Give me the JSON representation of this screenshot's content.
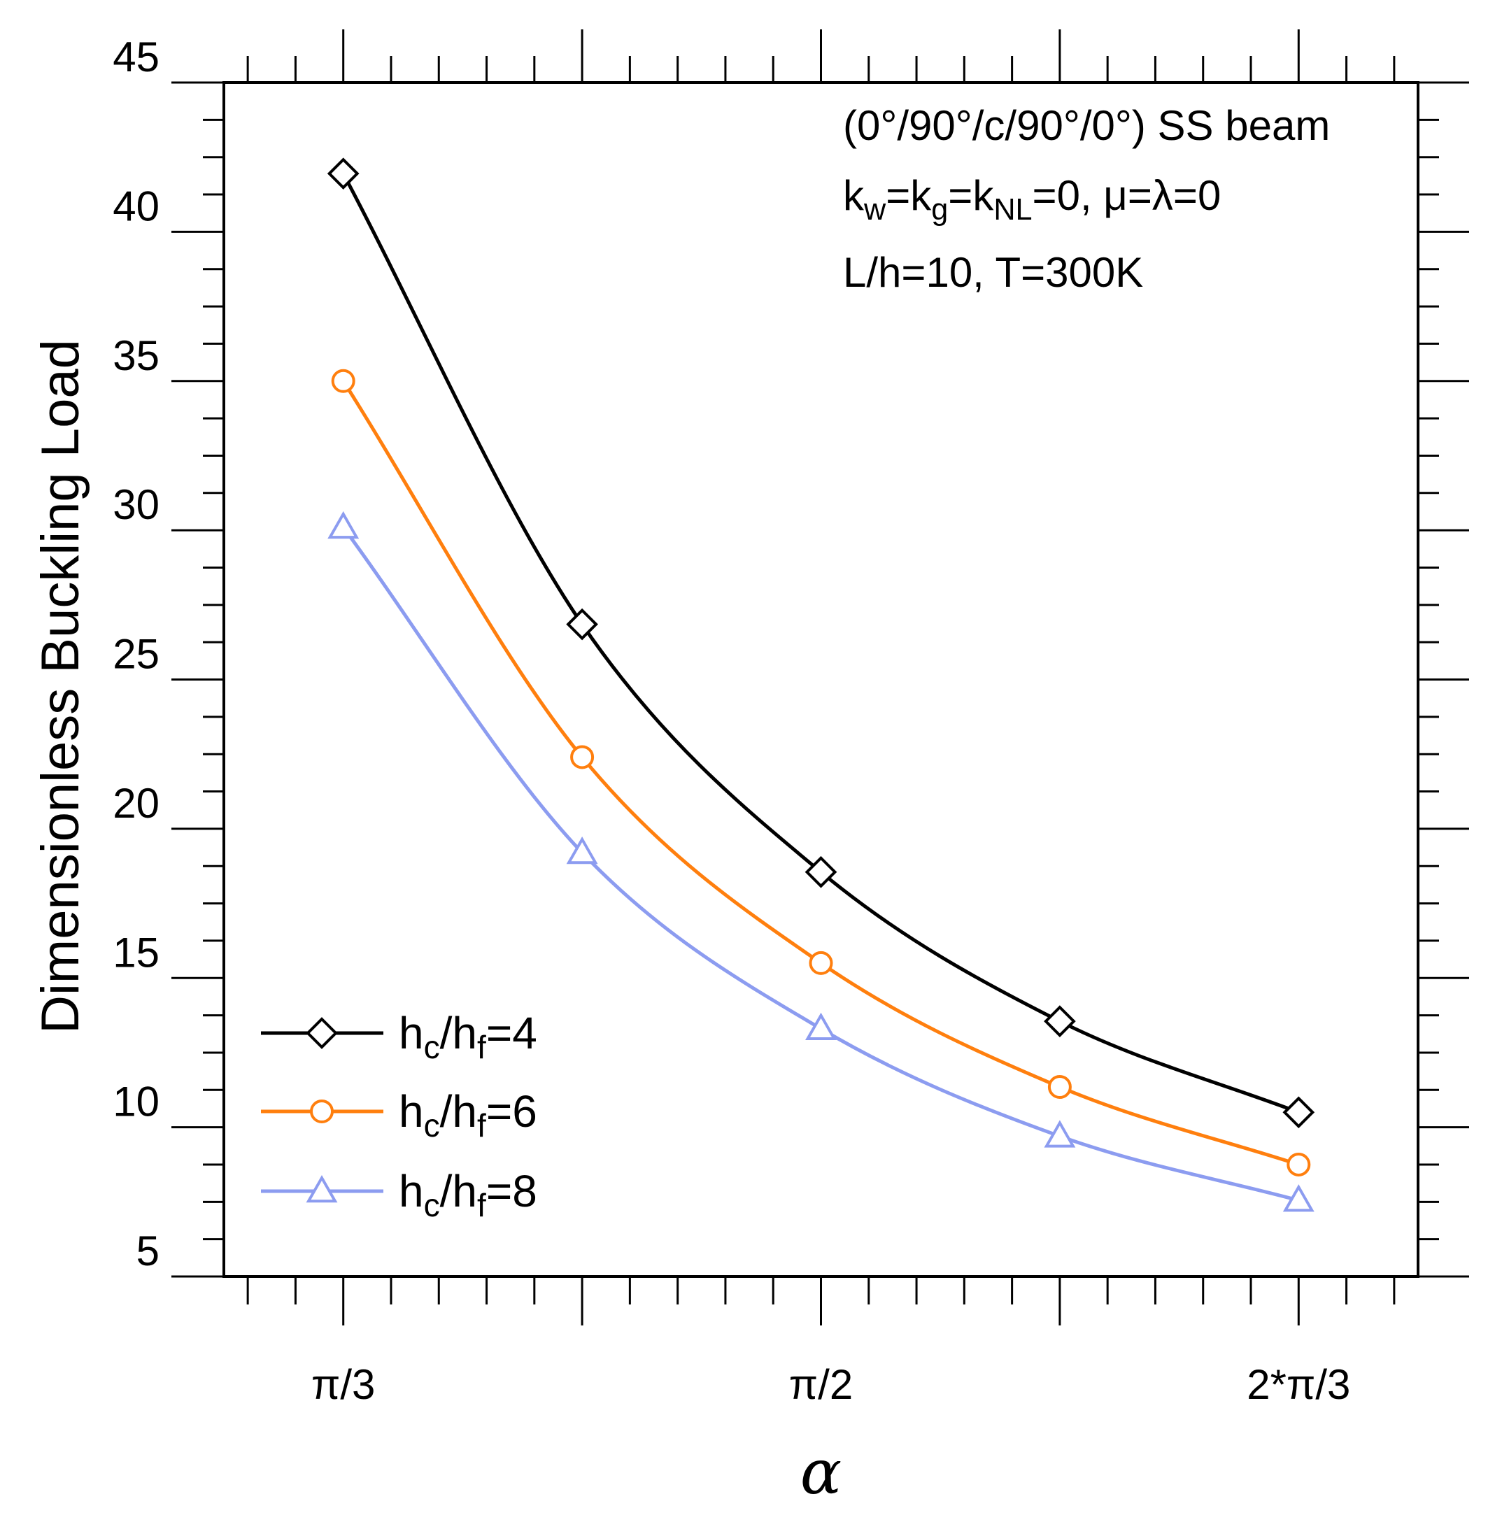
{
  "chart_data": {
    "type": "line",
    "title": "",
    "xlabel": "α",
    "ylabel": "Dimensionless Buckling Load",
    "x": [
      1.0472,
      1.309,
      1.5708,
      1.8326,
      2.0944
    ],
    "xlim": [
      0.9163,
      2.2253
    ],
    "ylim": [
      5,
      45
    ],
    "xticks": [
      {
        "value": 1.0472,
        "label": "π/3"
      },
      {
        "value": 1.5708,
        "label": "π/2"
      },
      {
        "value": 2.0944,
        "label": "2*π/3"
      }
    ],
    "yticks": [
      {
        "value": 5,
        "label": "5"
      },
      {
        "value": 10,
        "label": "10"
      },
      {
        "value": 15,
        "label": "15"
      },
      {
        "value": 20,
        "label": "20"
      },
      {
        "value": 25,
        "label": "25"
      },
      {
        "value": 30,
        "label": "30"
      },
      {
        "value": 35,
        "label": "35"
      },
      {
        "value": 40,
        "label": "40"
      },
      {
        "value": 45,
        "label": "45"
      }
    ],
    "annotations": [
      {
        "parts": [
          {
            "t": "(0°/90°/c/90°/0°) SS beam"
          }
        ]
      },
      {
        "parts": [
          {
            "t": "k"
          },
          {
            "t": "w",
            "sub": true
          },
          {
            "t": "=k"
          },
          {
            "t": "g",
            "sub": true
          },
          {
            "t": "=k"
          },
          {
            "t": "NL",
            "sub": true
          },
          {
            "t": "=0, μ=λ=0"
          }
        ]
      },
      {
        "parts": [
          {
            "t": "L/h=10, T=300K"
          }
        ]
      }
    ],
    "series": [
      {
        "name": "h_c/h_f=4",
        "name_parts": [
          {
            "t": "h"
          },
          {
            "t": "c",
            "sub": true
          },
          {
            "t": "/h"
          },
          {
            "t": "f",
            "sub": true
          },
          {
            "t": "=4"
          }
        ],
        "color": "#000000",
        "marker": "diamond",
        "values": [
          41.95,
          26.85,
          18.55,
          13.55,
          10.5
        ]
      },
      {
        "name": "h_c/h_f=6",
        "name_parts": [
          {
            "t": "h"
          },
          {
            "t": "c",
            "sub": true
          },
          {
            "t": "/h"
          },
          {
            "t": "f",
            "sub": true
          },
          {
            "t": "=6"
          }
        ],
        "color": "#ff7f0e",
        "marker": "circle",
        "values": [
          35.0,
          22.4,
          15.5,
          11.35,
          8.75
        ]
      },
      {
        "name": "h_c/h_f=8",
        "name_parts": [
          {
            "t": "h"
          },
          {
            "t": "c",
            "sub": true
          },
          {
            "t": "/h"
          },
          {
            "t": "f",
            "sub": true
          },
          {
            "t": "=8"
          }
        ],
        "color": "#8c9cf0",
        "marker": "triangle",
        "values": [
          30.1,
          19.2,
          13.3,
          9.7,
          7.55
        ]
      }
    ],
    "legend_position": "bottom-left",
    "grid": false
  }
}
